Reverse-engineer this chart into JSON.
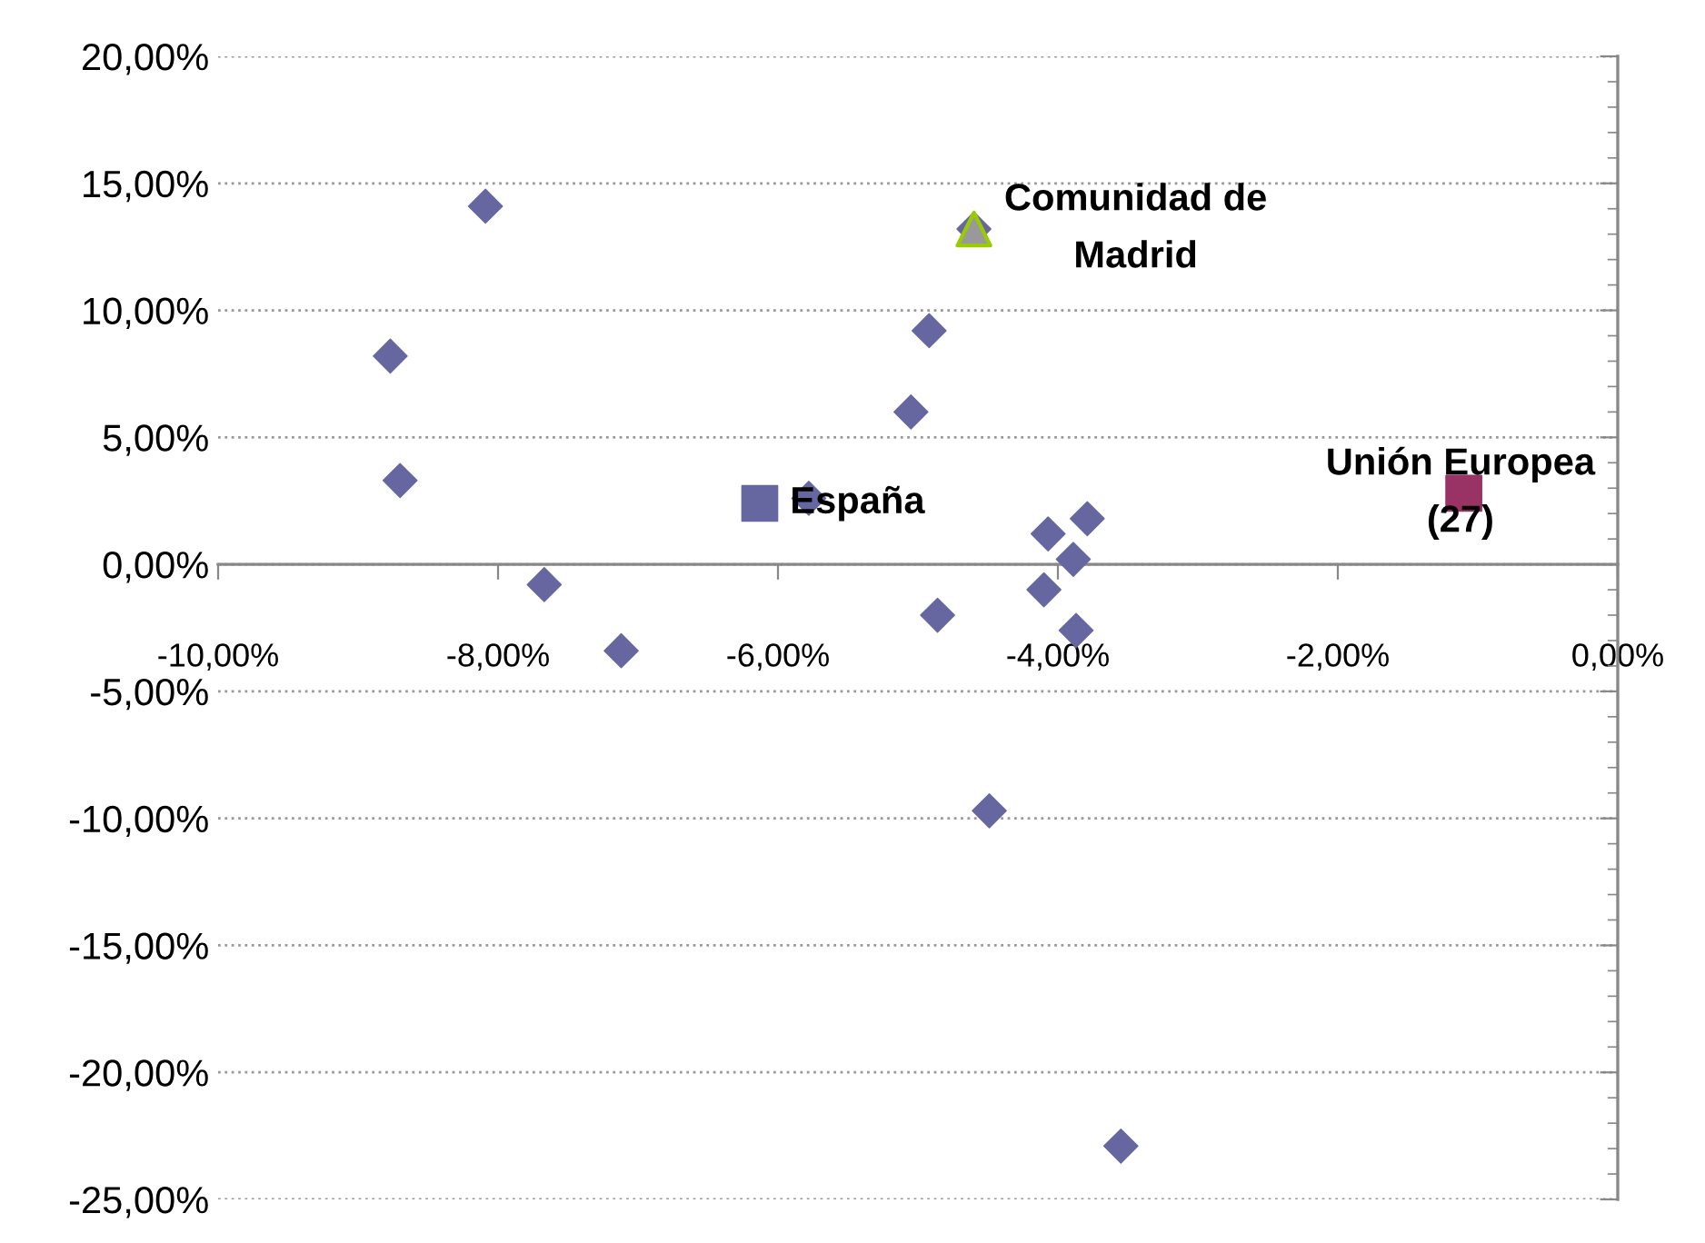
{
  "chart_data": {
    "type": "scatter",
    "xlim": [
      -10,
      0
    ],
    "ylim": [
      -25,
      20
    ],
    "xticks": [
      {
        "value": -10,
        "label": "-10,00%"
      },
      {
        "value": -8,
        "label": "-8,00%"
      },
      {
        "value": -6,
        "label": "-6,00%"
      },
      {
        "value": -4,
        "label": "-4,00%"
      },
      {
        "value": -2,
        "label": "-2,00%"
      },
      {
        "value": 0,
        "label": "0,00%"
      }
    ],
    "yticks": [
      {
        "value": -25,
        "label": "-25,00%"
      },
      {
        "value": -20,
        "label": "-20,00%"
      },
      {
        "value": -15,
        "label": "-15,00%"
      },
      {
        "value": -10,
        "label": "-10,00%"
      },
      {
        "value": -5,
        "label": "-5,00%"
      },
      {
        "value": 0,
        "label": "0,00%"
      },
      {
        "value": 5,
        "label": "5,00%"
      },
      {
        "value": 10,
        "label": "10,00%"
      },
      {
        "value": 15,
        "label": "15,00%"
      },
      {
        "value": 20,
        "label": "20,00%"
      }
    ],
    "grid": "y",
    "series": [
      {
        "color": "#6667a0",
        "marker": "diamond",
        "x": [
          -8.09,
          -8.77,
          -8.7,
          -7.67,
          -7.12,
          -4.92,
          -5.05,
          -5.78,
          -4.6,
          -4.86,
          -4.07,
          -3.89,
          -3.79,
          -4.1,
          -3.87,
          -4.49,
          -3.55
        ],
        "values": [
          14.1,
          8.2,
          3.3,
          -0.8,
          -3.4,
          9.2,
          6.0,
          2.6,
          13.2,
          -2.0,
          1.2,
          0.2,
          1.8,
          -1.0,
          -2.6,
          -9.7,
          -22.9
        ]
      },
      {
        "name": "Comunidad de\nMadrid",
        "color": "#999999",
        "marker": "triangle",
        "x": [
          -4.6
        ],
        "values": [
          13.2
        ]
      },
      {
        "name": "España",
        "color": "#6667a0",
        "marker": "square",
        "x": [
          -6.13
        ],
        "values": [
          2.4
        ]
      },
      {
        "name": "Unión Europea\n(27)",
        "color": "#993366",
        "marker": "square",
        "x": [
          -1.1
        ],
        "values": [
          2.8
        ]
      }
    ]
  }
}
